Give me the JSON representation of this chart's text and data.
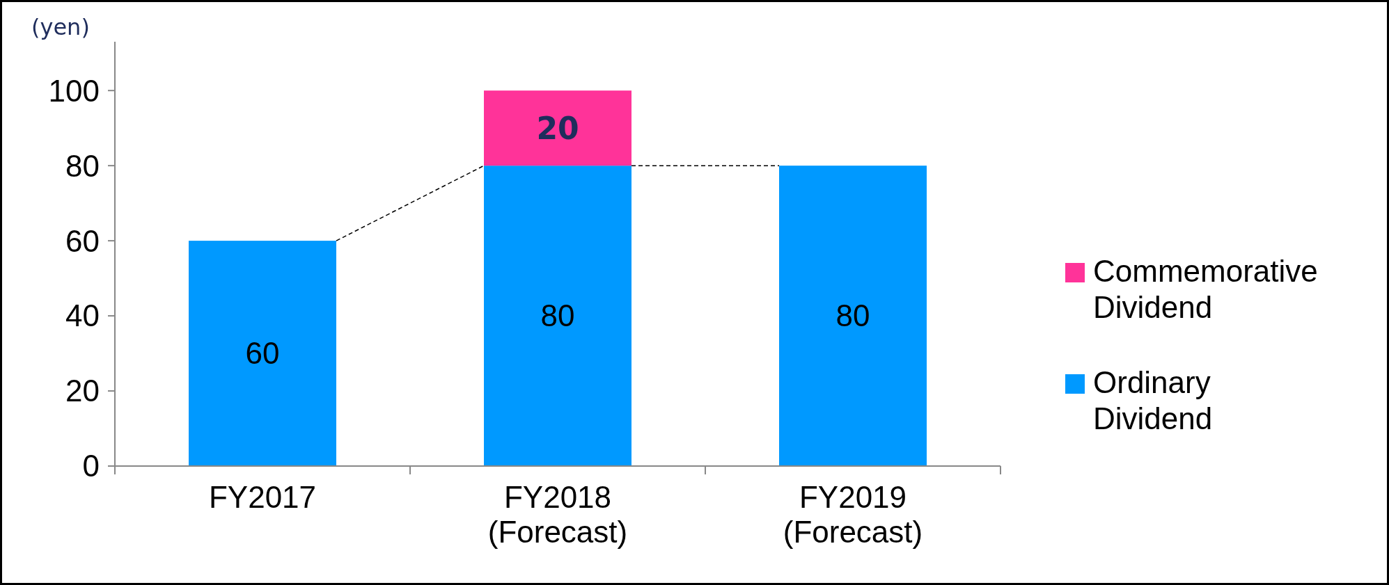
{
  "chart_data": {
    "type": "bar",
    "ylabel": "(yen)",
    "categories": [
      "FY2017",
      "FY2018\n(Forecast)",
      "FY2019\n(Forecast)"
    ],
    "stacked": true,
    "series": [
      {
        "name": "Ordinary Dividend",
        "color": "#0099ff",
        "values": [
          60,
          80,
          80
        ]
      },
      {
        "name": "Commemorative Dividend",
        "color": "#ff3399",
        "values": [
          null,
          20,
          null
        ]
      }
    ],
    "ylim": [
      0,
      113
    ],
    "yticks": [
      0,
      20,
      40,
      60,
      80,
      100
    ],
    "data_labels": true,
    "legend": "right",
    "grid": false
  }
}
